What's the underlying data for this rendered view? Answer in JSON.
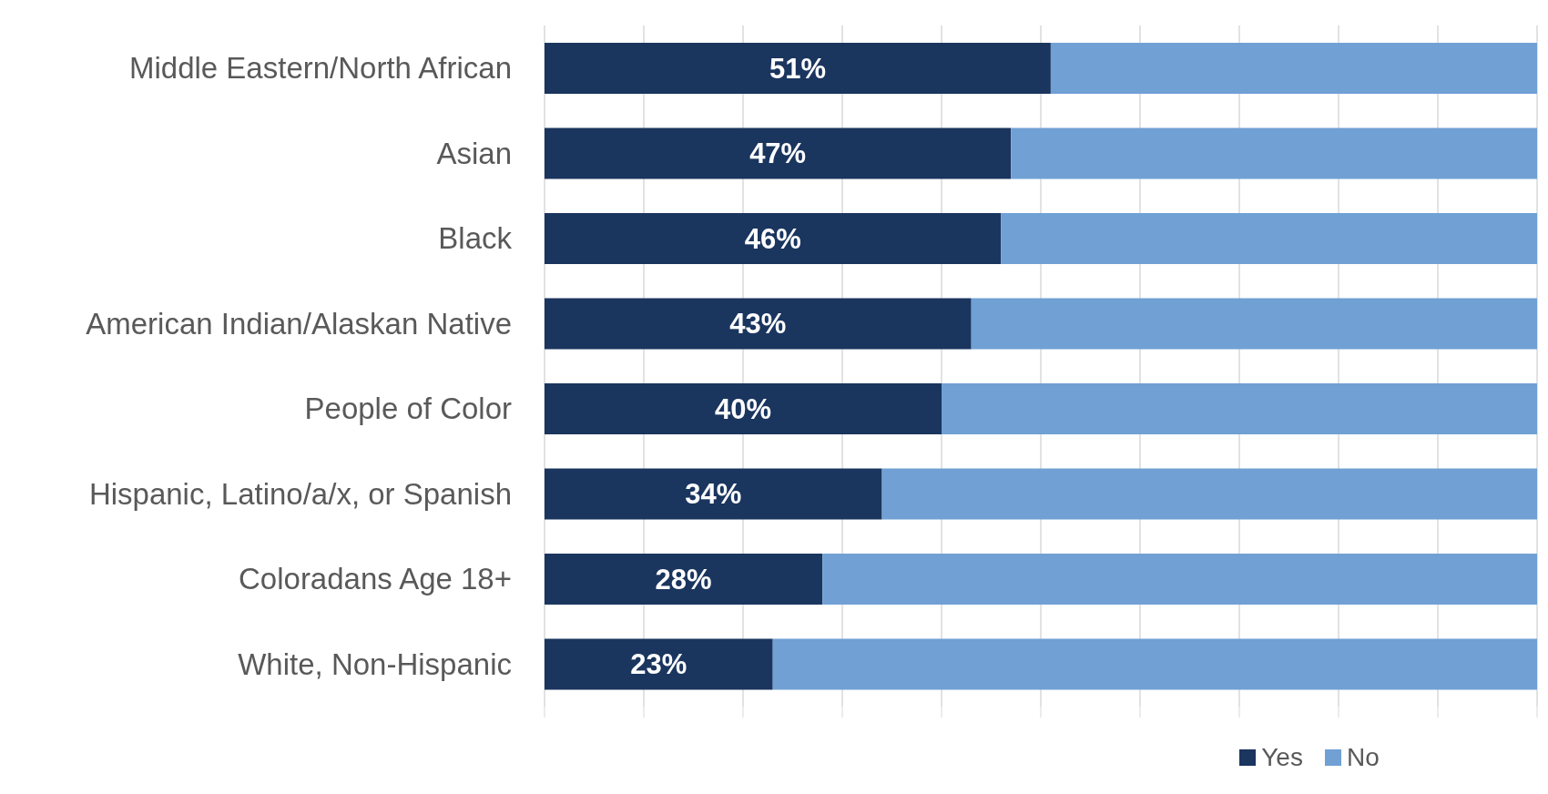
{
  "chart_data": {
    "type": "bar",
    "orientation": "horizontal",
    "stacked": true,
    "categories": [
      "Middle Eastern/North African",
      "Asian",
      "Black",
      "American Indian/Alaskan Native",
      "People of Color",
      "Hispanic, Latino/a/x, or Spanish",
      "Coloradans Age 18+",
      "White, Non-Hispanic"
    ],
    "series": [
      {
        "name": "Yes",
        "color": "#1a355e",
        "values": [
          51,
          47,
          46,
          43,
          40,
          34,
          28,
          23
        ],
        "value_labels": [
          "51%",
          "47%",
          "46%",
          "43%",
          "40%",
          "34%",
          "28%",
          "23%"
        ]
      },
      {
        "name": "No",
        "color": "#70a0d4",
        "values": [
          49,
          53,
          54,
          57,
          60,
          66,
          72,
          77
        ]
      }
    ],
    "xlim": [
      0,
      100
    ],
    "xticks": [
      {
        "value": 0,
        "label": null
      },
      {
        "value": 10,
        "label": null
      },
      {
        "value": 20,
        "label": null
      },
      {
        "value": 30,
        "label": null
      },
      {
        "value": 40,
        "label": null
      },
      {
        "value": 50,
        "label": null
      },
      {
        "value": 60,
        "label": null
      },
      {
        "value": 70,
        "label": null
      },
      {
        "value": 80,
        "label": null
      },
      {
        "value": 90,
        "label": null
      },
      {
        "value": 100,
        "label": null
      }
    ],
    "grid": "x",
    "legend": "bottom"
  }
}
